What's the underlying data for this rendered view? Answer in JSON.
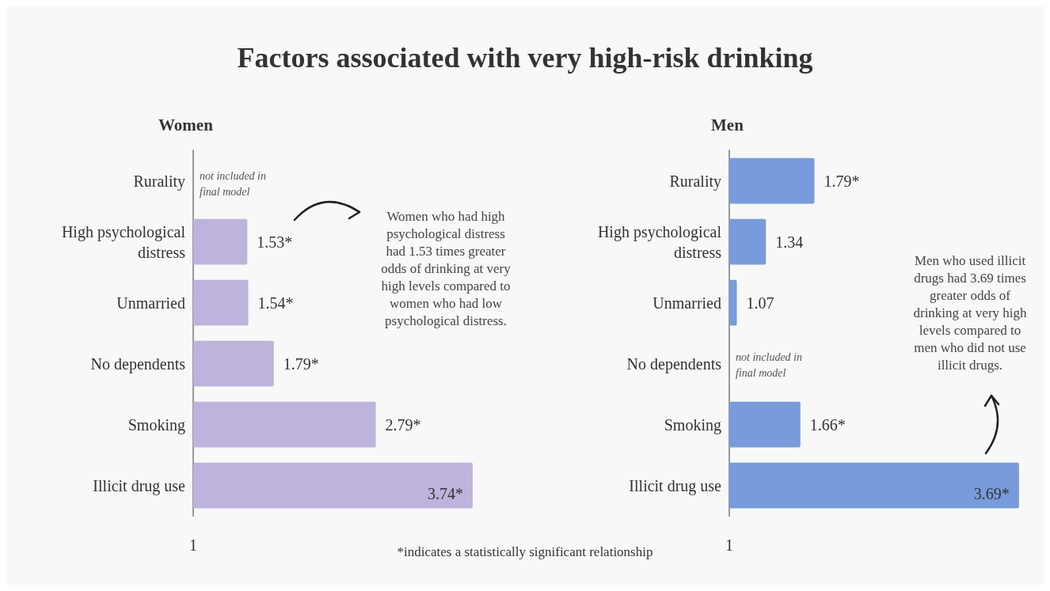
{
  "chart_data": [
    {
      "type": "other",
      "title": "Factors associated with very high-risk drinking",
      "annotations": [
        "*indicates a statistically significant relationship"
      ]
    },
    {
      "type": "bar",
      "orientation": "horizontal",
      "title": "Women",
      "categories": [
        "Rurality",
        "High psychological\ndistress",
        "Unmarried",
        "No dependents",
        "Smoking",
        "Illicit drug use"
      ],
      "values": [
        null,
        1.53,
        1.54,
        1.79,
        2.79,
        3.74
      ],
      "value_labels": [
        null,
        "1.53*",
        "1.54*",
        "1.79*",
        "2.79*",
        "3.74*"
      ],
      "color": "#bdb3dc",
      "xlim": [
        1,
        3.74
      ],
      "annotations": [
        "not included in\nfinal model",
        "Women who had high\npsychological distress\nhad 1.53 times greater\nodds of drinking at very\nhigh levels compared to\nwomen who had low\npsychological distress.",
        "1"
      ]
    },
    {
      "type": "bar",
      "orientation": "horizontal",
      "title": "Men",
      "categories": [
        "Rurality",
        "High psychological\ndistress",
        "Unmarried",
        "No dependents",
        "Smoking",
        "Illicit drug use"
      ],
      "values": [
        1.79,
        1.34,
        1.07,
        null,
        1.66,
        3.69
      ],
      "value_labels": [
        "1.79*",
        "1.34",
        "1.07",
        null,
        "1.66*",
        "3.69*"
      ],
      "color": "#779bdb",
      "xlim": [
        1,
        3.69
      ],
      "annotations": [
        "not included in\nfinal model",
        "Men who used illicit\ndrugs had 3.69 times\ngreater odds of\ndrinking at very high\nlevels compared to\nmen who did not use\nillicit drugs.",
        "1"
      ]
    }
  ]
}
